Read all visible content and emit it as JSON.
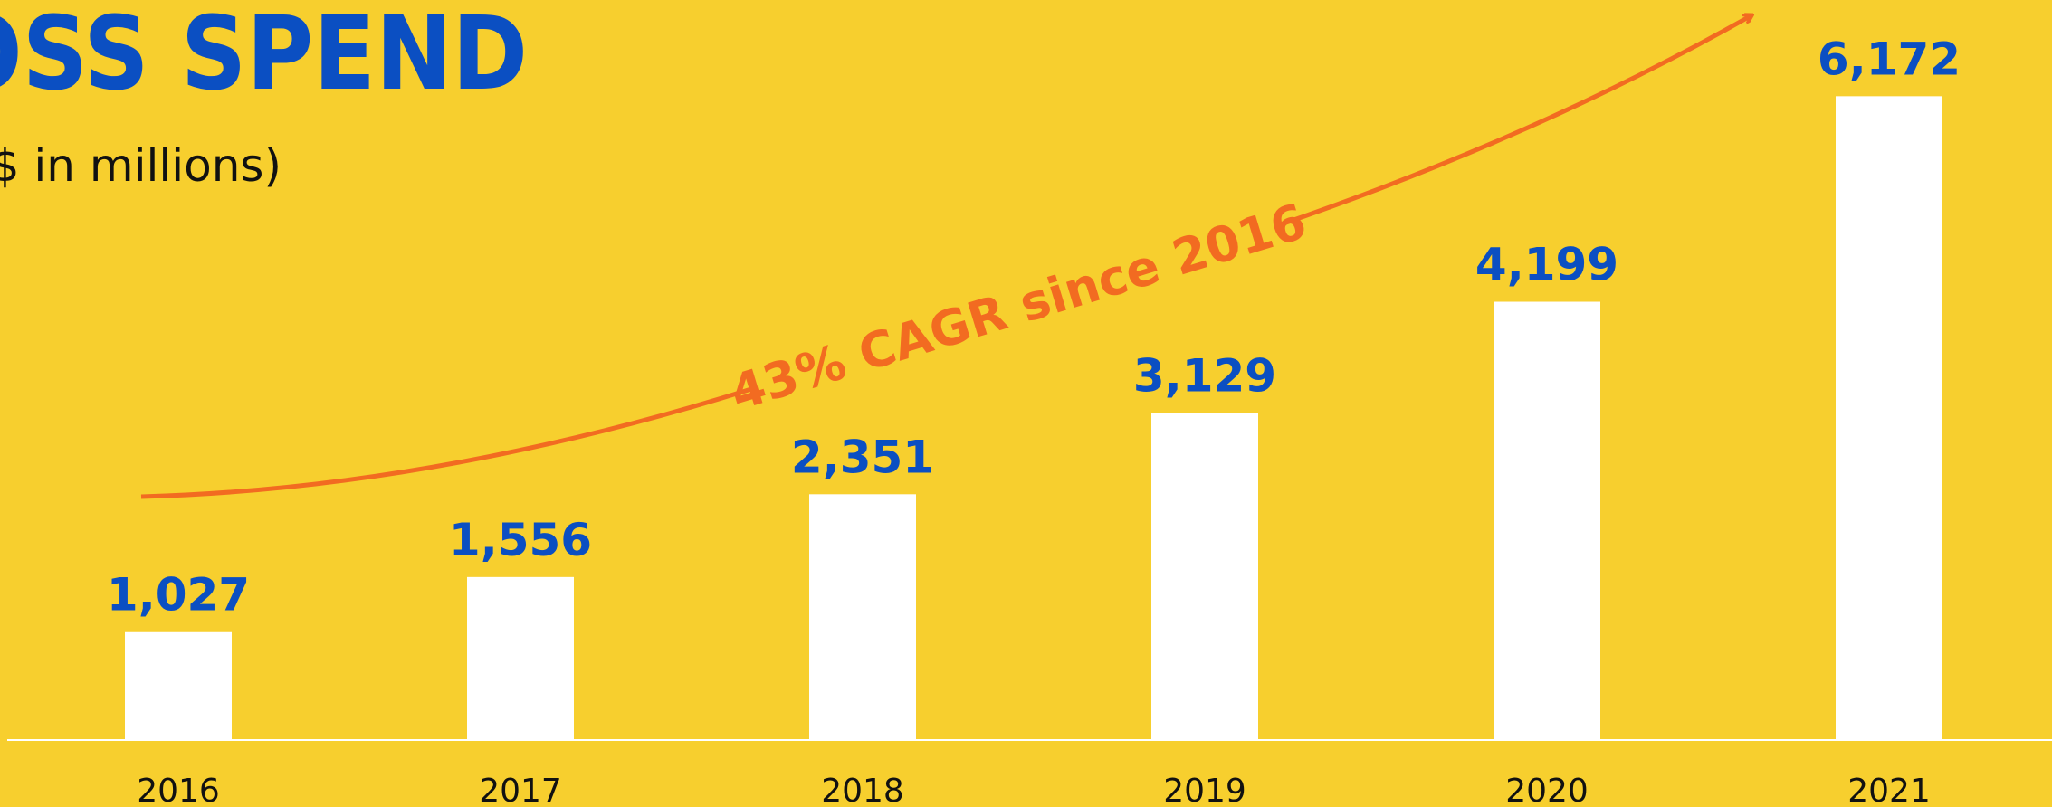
{
  "chart_data": {
    "type": "bar",
    "title": "GROSS SPEND",
    "subtitle": "$ in millions)",
    "annotation": "43% CAGR since 2016",
    "categories": [
      "2016",
      "2017",
      "2018",
      "2019",
      "2020",
      "2021"
    ],
    "values": [
      1027,
      1556,
      2351,
      3129,
      4199,
      6172
    ],
    "value_labels": [
      "1,027",
      "1,556",
      "2,351",
      "3,129",
      "4,199",
      "6,172"
    ],
    "color": "#ffffff",
    "label_color": "#0b4fc2",
    "annotation_color": "#f26b21",
    "ylim": [
      0,
      7000
    ]
  }
}
